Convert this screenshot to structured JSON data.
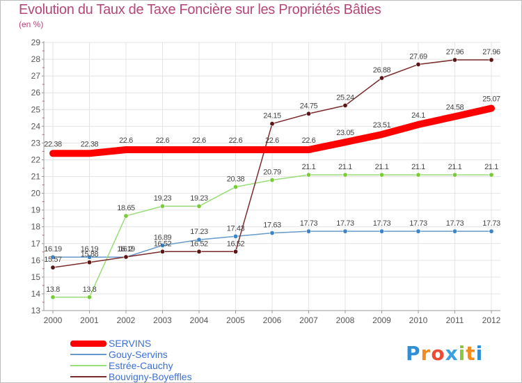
{
  "title": "Evolution du Taux de Taxe Foncière sur les Propriétés Bâties",
  "unit": "(en %)",
  "logo": {
    "letters": [
      {
        "ch": "P",
        "color": "#2e8fd6"
      },
      {
        "ch": "r",
        "color": "#f28c1e"
      },
      {
        "ch": "o",
        "color": "#e94b35"
      },
      {
        "ch": "x",
        "color": "#3aa0e0"
      },
      {
        "ch": "i",
        "color": "#8cc63f"
      },
      {
        "ch": "t",
        "color": "#f28c1e"
      },
      {
        "ch": "i",
        "color": "#2e8fd6"
      }
    ]
  },
  "chart_data": {
    "type": "line",
    "title": "Evolution du Taux de Taxe Foncière sur les Propriétés Bâties",
    "ylabel": "(en %)",
    "xlabel": "",
    "ylim": [
      13,
      29
    ],
    "yticks": [
      13,
      14,
      15,
      16,
      17,
      18,
      19,
      20,
      21,
      22,
      23,
      24,
      25,
      26,
      27,
      28,
      29
    ],
    "categories": [
      "2000",
      "2001",
      "2002",
      "2003",
      "2004",
      "2005",
      "2006",
      "2007",
      "2008",
      "2009",
      "2010",
      "2011",
      "2012"
    ],
    "grid": true,
    "legend": "bottom-left",
    "series": [
      {
        "name": "SERVINS",
        "color": "#ff0000",
        "thick": true,
        "values": [
          22.38,
          22.38,
          22.6,
          22.6,
          22.6,
          22.6,
          22.6,
          22.6,
          23.05,
          23.51,
          24.1,
          24.58,
          25.07
        ],
        "labels": [
          "22.38",
          "22.38",
          "22.6",
          "22.6",
          "22.6",
          "22.6",
          "22.6",
          "22.6",
          "23.05",
          "23.51",
          "24.1",
          "24.58",
          "25.07"
        ]
      },
      {
        "name": "Gouy-Servins",
        "color": "#6699cc",
        "dot": "#3d85c6",
        "values": [
          16.19,
          16.19,
          16.19,
          16.89,
          17.23,
          17.43,
          17.63,
          17.73,
          17.73,
          17.73,
          17.73,
          17.73,
          17.73
        ],
        "labels": [
          "16.19",
          "16.19",
          "16.19",
          "16.89",
          "17.23",
          "17.43",
          "17.63",
          "17.73",
          "17.73",
          "17.73",
          "17.73",
          "17.73",
          "17.73"
        ]
      },
      {
        "name": "Estrée-Cauchy",
        "color": "#99dd77",
        "dot": "#7acb3a",
        "values": [
          13.8,
          13.8,
          18.65,
          19.23,
          19.23,
          20.38,
          20.79,
          21.1,
          21.1,
          21.1,
          21.1,
          21.1,
          21.1
        ],
        "labels": [
          "13.8",
          "13.8",
          "18.65",
          "19.23",
          "19.23",
          "20.38",
          "20.79",
          "21.1",
          "21.1",
          "21.1",
          "21.1",
          "21.1",
          "21.1"
        ]
      },
      {
        "name": "Bouvigny-Boyeffles",
        "color": "#7a2a2a",
        "dot": "#5c1515",
        "values": [
          15.57,
          15.88,
          16.2,
          16.52,
          16.52,
          16.52,
          24.15,
          24.75,
          25.24,
          26.88,
          27.69,
          27.96,
          27.96
        ],
        "labels": [
          "15.57",
          "15.88",
          "16.2",
          "16.52",
          "16.52",
          "16.52",
          "24.15",
          "24.75",
          "25.24",
          "26.88",
          "27.69",
          "27.96",
          "27.96"
        ]
      }
    ]
  }
}
